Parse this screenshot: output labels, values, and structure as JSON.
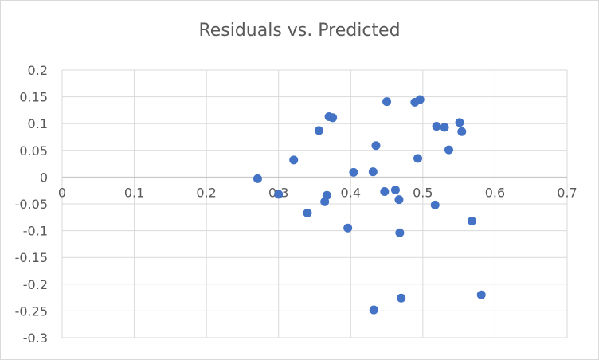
{
  "chart_data": {
    "type": "scatter",
    "title": "Residuals vs. Predicted",
    "xlabel": "",
    "ylabel": "",
    "xlim": [
      0,
      0.7
    ],
    "ylim": [
      -0.3,
      0.2
    ],
    "x_ticks": [
      0,
      0.1,
      0.2,
      0.3,
      0.4,
      0.5,
      0.6,
      0.7
    ],
    "x_tick_labels": [
      "0",
      "0.1",
      "0.2",
      "0.3",
      "0.4",
      "0.5",
      "0.6",
      "0.7"
    ],
    "y_ticks": [
      0.2,
      0.15,
      0.1,
      0.05,
      0,
      -0.05,
      -0.1,
      -0.15,
      -0.2,
      -0.25,
      -0.3
    ],
    "y_tick_labels": [
      "0.2",
      "0.15",
      "0.1",
      "0.05",
      "0",
      "-0.05",
      "-0.1",
      "-0.15",
      "-0.2",
      "-0.25",
      "-0.3"
    ],
    "grid": true,
    "marker_color": "#4472c4",
    "series": [
      {
        "points": [
          [
            0.271,
            -0.003
          ],
          [
            0.3,
            -0.032
          ],
          [
            0.321,
            0.032
          ],
          [
            0.34,
            -0.067
          ],
          [
            0.356,
            0.087
          ],
          [
            0.364,
            -0.046
          ],
          [
            0.367,
            -0.034
          ],
          [
            0.37,
            0.113
          ],
          [
            0.375,
            0.111
          ],
          [
            0.396,
            -0.095
          ],
          [
            0.404,
            0.009
          ],
          [
            0.431,
            0.01
          ],
          [
            0.432,
            -0.248
          ],
          [
            0.435,
            0.059
          ],
          [
            0.447,
            -0.027
          ],
          [
            0.45,
            0.141
          ],
          [
            0.462,
            -0.024
          ],
          [
            0.467,
            -0.042
          ],
          [
            0.468,
            -0.104
          ],
          [
            0.47,
            -0.226
          ],
          [
            0.489,
            0.14
          ],
          [
            0.493,
            0.035
          ],
          [
            0.496,
            0.145
          ],
          [
            0.517,
            -0.052
          ],
          [
            0.519,
            0.095
          ],
          [
            0.53,
            0.093
          ],
          [
            0.536,
            0.051
          ],
          [
            0.551,
            0.102
          ],
          [
            0.554,
            0.085
          ],
          [
            0.568,
            -0.082
          ],
          [
            0.581,
            -0.22
          ]
        ]
      }
    ]
  }
}
